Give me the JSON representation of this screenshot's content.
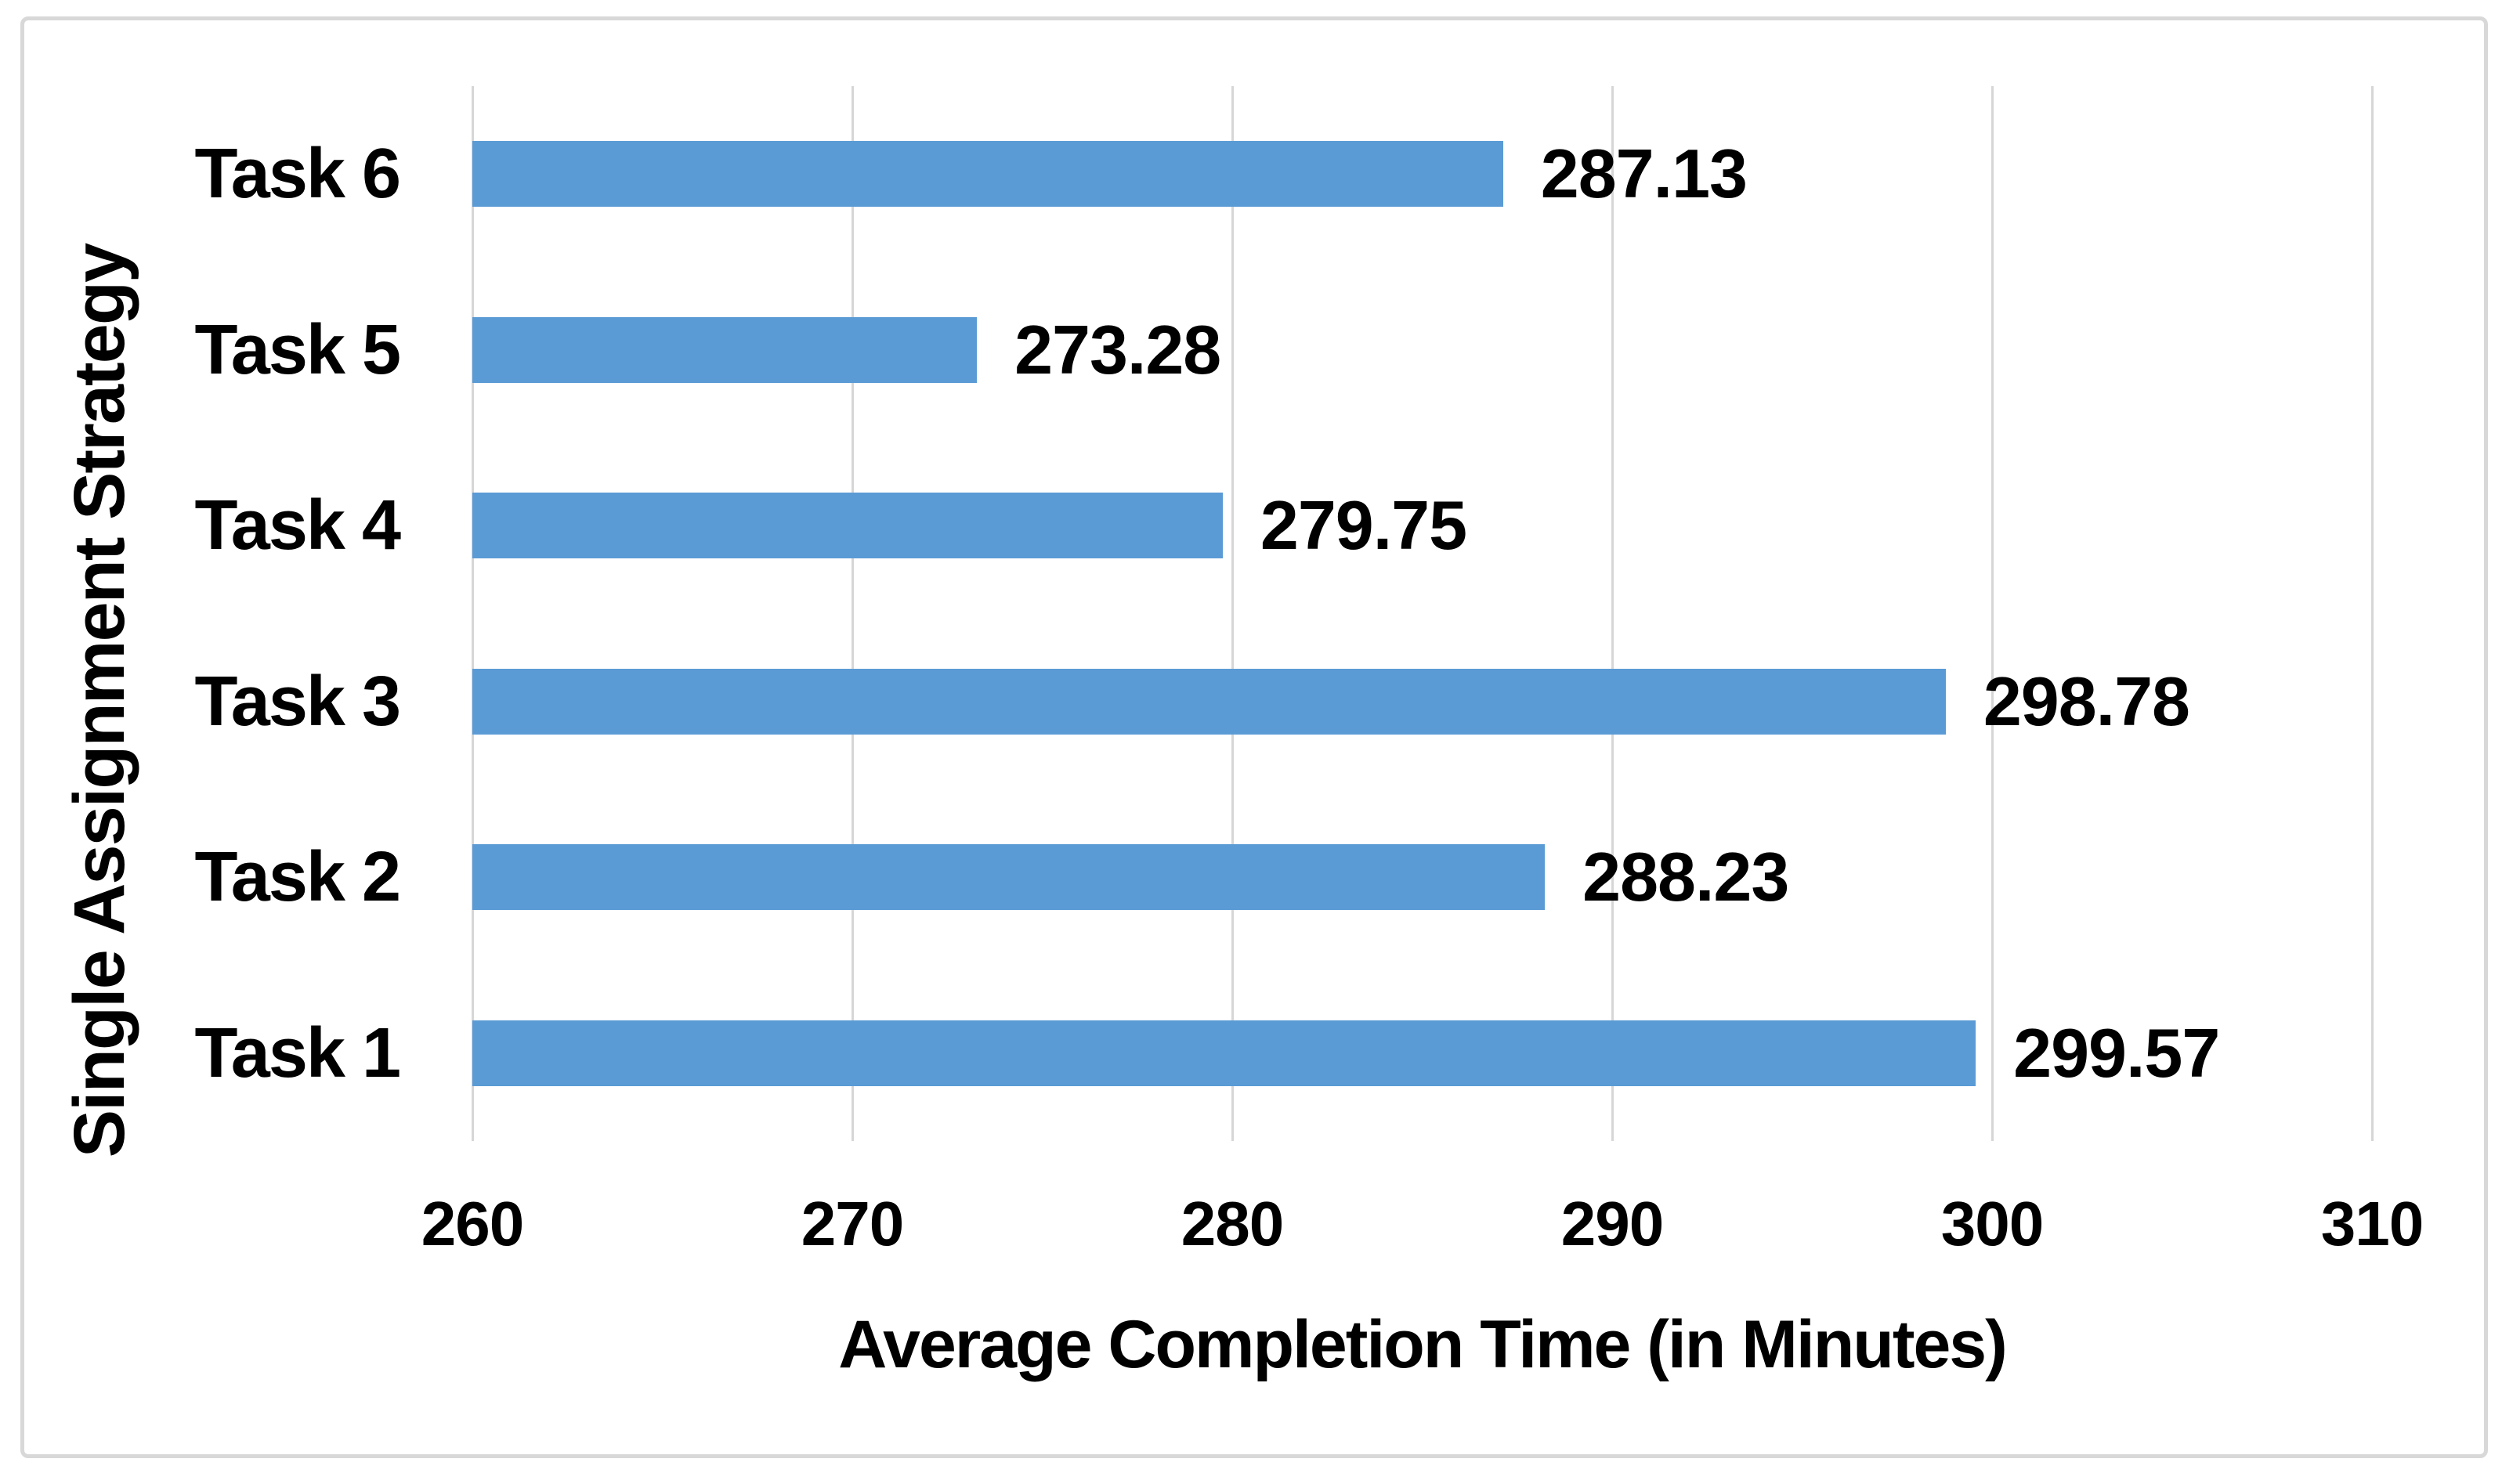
{
  "chart_data": {
    "type": "bar",
    "orientation": "horizontal",
    "title": "",
    "xlabel": "Average Completion Time (in Minutes)",
    "ylabel": "Single Assignment Strategy",
    "categories": [
      "Task 6",
      "Task 5",
      "Task 4",
      "Task 3",
      "Task 2",
      "Task 1"
    ],
    "values": [
      287.13,
      273.28,
      279.75,
      298.78,
      288.23,
      299.57
    ],
    "value_labels": [
      "287.13",
      "273.28",
      "279.75",
      "298.78",
      "288.23",
      "299.57"
    ],
    "xlim": [
      260,
      310
    ],
    "xticks": [
      260,
      270,
      280,
      290,
      300,
      310
    ],
    "xtick_labels": [
      "260",
      "270",
      "280",
      "290",
      "300",
      "310"
    ],
    "grid": "vertical-gridlines-on",
    "legend": "none",
    "bar_color": "#5B9BD5",
    "note": "Bars start at axis minimum 260; categories listed top-to-bottom"
  },
  "colors": {
    "bar": "#5B9BD5",
    "gridline": "#D6D6D6",
    "frame_border": "#D8D8D8",
    "text": "#000000",
    "background": "#FFFFFF"
  }
}
